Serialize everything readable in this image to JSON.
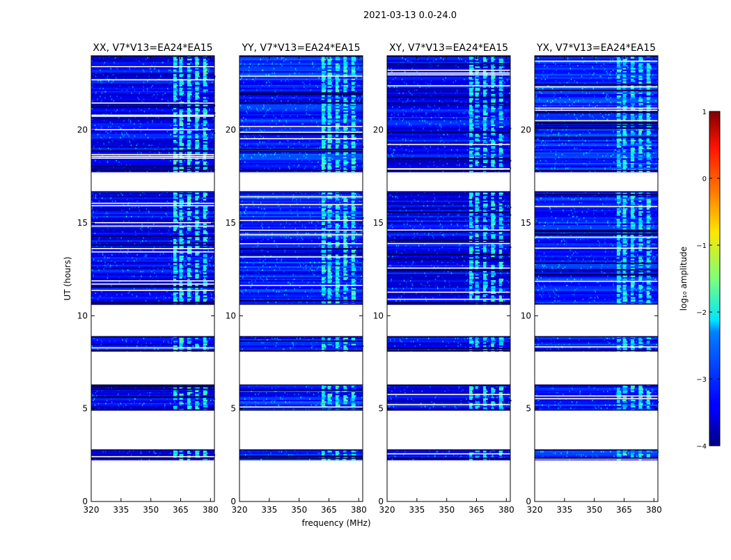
{
  "suptitle": "2021-03-13 0.0-24.0",
  "chart_data": {
    "type": "heatmap",
    "panels": [
      {
        "title": "XX, V7*V13=EA24*EA15",
        "polarization": "XX"
      },
      {
        "title": "YY, V7*V13=EA24*EA15",
        "polarization": "YY"
      },
      {
        "title": "XY, V7*V13=EA24*EA15",
        "polarization": "XY"
      },
      {
        "title": "YX, V7*V13=EA24*EA15",
        "polarization": "YX"
      }
    ],
    "xlabel": "frequency (MHz)",
    "ylabel": "UT (hours)",
    "xlim": [
      320,
      382
    ],
    "ylim": [
      0,
      24
    ],
    "xticks": [
      320,
      335,
      350,
      365,
      380
    ],
    "yticks": [
      0,
      5,
      10,
      15,
      20
    ],
    "colorbar": {
      "label": "log₁₀ amplitude",
      "range": [
        -4,
        1
      ],
      "ticks": [
        1,
        0,
        -1,
        -2,
        -3,
        -4
      ],
      "colormap": "jet"
    },
    "data_blocks_hours": [
      [
        2.3,
        2.8
      ],
      [
        4.9,
        6.3
      ],
      [
        8.1,
        8.9
      ],
      [
        10.6,
        16.7
      ],
      [
        17.8,
        24.0
      ]
    ],
    "rfi_band_mhz": [
      360,
      379
    ]
  }
}
